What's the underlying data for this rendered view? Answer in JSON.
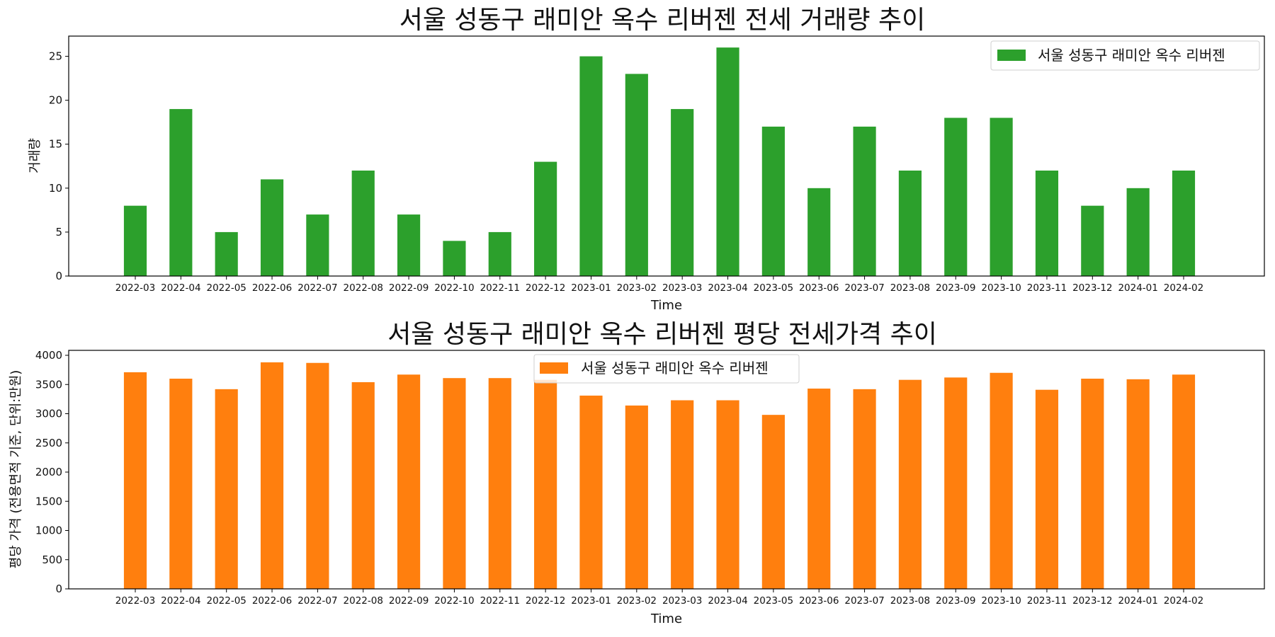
{
  "chart_data": [
    {
      "type": "bar",
      "title": "서울 성동구 래미안 옥수 리버젠 전세 거래량 추이",
      "xlabel": "Time",
      "ylabel": "거래량",
      "ylim": [
        0,
        27.3
      ],
      "yticks": [
        0,
        5,
        10,
        15,
        20,
        25
      ],
      "legend_position": "upper right",
      "grid": false,
      "categories": [
        "2022-03",
        "2022-04",
        "2022-05",
        "2022-06",
        "2022-07",
        "2022-08",
        "2022-09",
        "2022-10",
        "2022-11",
        "2022-12",
        "2023-01",
        "2023-02",
        "2023-03",
        "2023-04",
        "2023-05",
        "2023-06",
        "2023-07",
        "2023-08",
        "2023-09",
        "2023-10",
        "2023-11",
        "2023-12",
        "2024-01",
        "2024-02"
      ],
      "series": [
        {
          "name": "서울 성동구 래미안 옥수 리버젠",
          "color": "#2ca02c",
          "values": [
            8,
            19,
            5,
            11,
            7,
            12,
            7,
            4,
            5,
            13,
            25,
            23,
            19,
            26,
            17,
            10,
            17,
            12,
            18,
            18,
            12,
            8,
            10,
            12
          ]
        }
      ]
    },
    {
      "type": "bar",
      "title": "서울 성동구 래미안 옥수 리버젠 평당 전세가격 추이",
      "xlabel": "Time",
      "ylabel": "평당 가격 (전용면적 기준, 단위:만원)",
      "ylim": [
        0,
        4085
      ],
      "yticks": [
        0,
        500,
        1000,
        1500,
        2000,
        2500,
        3000,
        3500,
        4000
      ],
      "legend_position": "upper center",
      "grid": false,
      "categories": [
        "2022-03",
        "2022-04",
        "2022-05",
        "2022-06",
        "2022-07",
        "2022-08",
        "2022-09",
        "2022-10",
        "2022-11",
        "2022-12",
        "2023-01",
        "2023-02",
        "2023-03",
        "2023-04",
        "2023-05",
        "2023-06",
        "2023-07",
        "2023-08",
        "2023-09",
        "2023-10",
        "2023-11",
        "2023-12",
        "2024-01",
        "2024-02"
      ],
      "series": [
        {
          "name": "서울 성동구 래미안 옥수 리버젠",
          "color": "#ff7f0e",
          "values": [
            3710,
            3600,
            3420,
            3880,
            3870,
            3540,
            3670,
            3610,
            3610,
            3580,
            3310,
            3140,
            3230,
            3230,
            2980,
            3430,
            3420,
            3580,
            3620,
            3700,
            3410,
            3600,
            3590,
            3670
          ]
        }
      ]
    }
  ]
}
